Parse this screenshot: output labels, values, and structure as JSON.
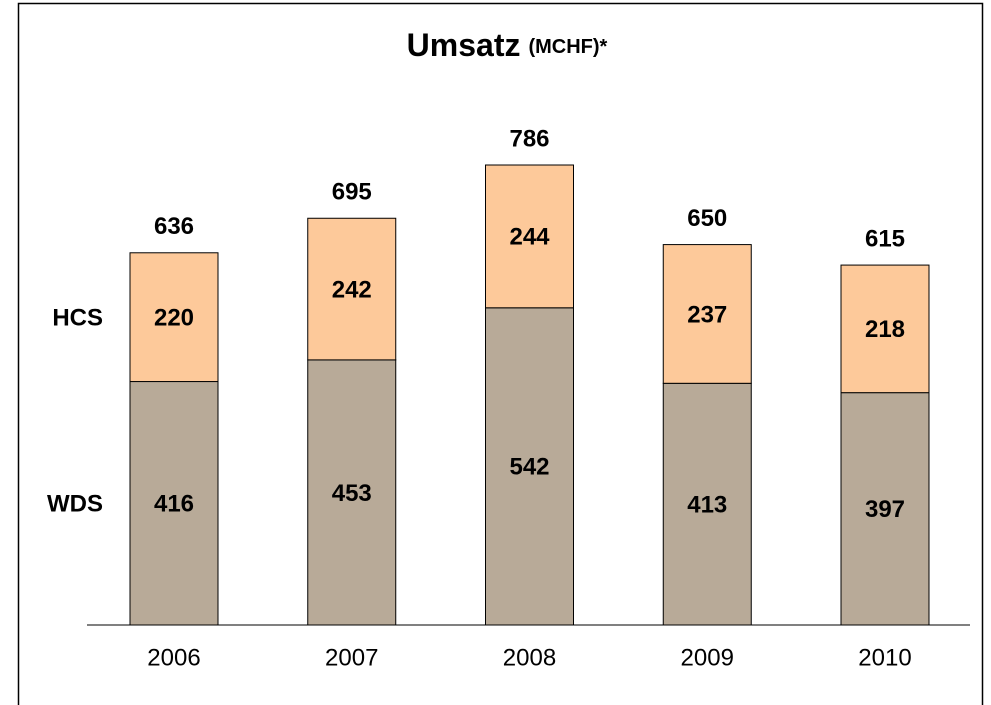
{
  "chart_data": {
    "type": "stacked_bar",
    "title": "Umsatz",
    "title_unit": "(MCHF)*",
    "categories": [
      "2006",
      "2007",
      "2008",
      "2009",
      "2010"
    ],
    "series": [
      {
        "name": "WDS",
        "color": "#b8aa98",
        "values": [
          416,
          453,
          542,
          413,
          397
        ]
      },
      {
        "name": "HCS",
        "color": "#fdc99a",
        "values": [
          220,
          242,
          244,
          237,
          218
        ]
      }
    ],
    "totals": [
      636,
      695,
      786,
      650,
      615
    ]
  }
}
